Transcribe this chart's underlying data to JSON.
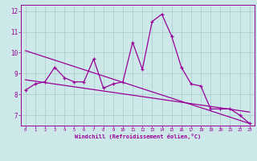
{
  "xlabel": "Windchill (Refroidissement éolien,°C)",
  "bg_color": "#cce8e8",
  "line_color": "#990099",
  "grid_color": "#aacccc",
  "x_hours": [
    0,
    1,
    2,
    3,
    4,
    5,
    6,
    7,
    8,
    9,
    10,
    11,
    12,
    13,
    14,
    15,
    16,
    17,
    18,
    19,
    20,
    21,
    22,
    23
  ],
  "main_line": [
    8.2,
    8.5,
    8.6,
    9.3,
    8.8,
    8.6,
    8.6,
    9.7,
    8.3,
    8.5,
    8.6,
    10.5,
    9.2,
    11.5,
    11.85,
    10.8,
    9.3,
    8.5,
    8.4,
    7.3,
    7.3,
    7.3,
    7.0,
    6.6
  ],
  "trend1_x": [
    0,
    23
  ],
  "trend1_y": [
    10.1,
    6.6
  ],
  "trend2_x": [
    0,
    23
  ],
  "trend2_y": [
    8.7,
    7.15
  ],
  "ylim": [
    6.5,
    12.3
  ],
  "xlim": [
    -0.5,
    23.5
  ],
  "yticks": [
    7,
    8,
    9,
    10,
    11,
    12
  ],
  "xticks": [
    0,
    1,
    2,
    3,
    4,
    5,
    6,
    7,
    8,
    9,
    10,
    11,
    12,
    13,
    14,
    15,
    16,
    17,
    18,
    19,
    20,
    21,
    22,
    23
  ]
}
